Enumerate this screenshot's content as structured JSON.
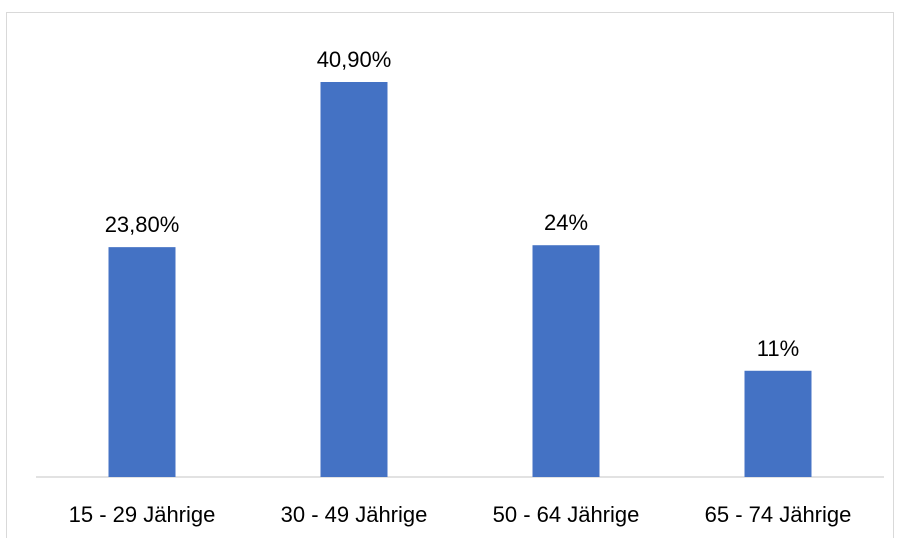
{
  "chart_data": {
    "type": "bar",
    "categories": [
      "15 - 29 Jährige",
      "30 - 49 Jährige",
      "50 - 64 Jährige",
      "65 - 74 Jährige"
    ],
    "values": [
      23.8,
      40.9,
      24,
      11
    ],
    "value_labels": [
      "23,80%",
      "40,90%",
      "24%",
      "11%"
    ],
    "ylim": [
      0,
      45
    ],
    "bar_color": "#4472C4",
    "axis_color": "#d9d9d9",
    "grid": false
  }
}
